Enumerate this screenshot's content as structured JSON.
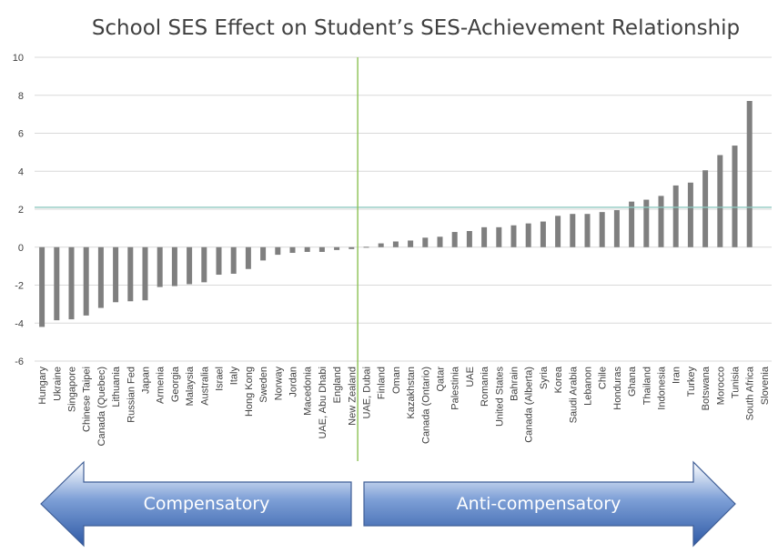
{
  "chart_data": {
    "type": "bar",
    "title": "School SES Effect on Student’s SES-Achievement Relationship",
    "xlabel": "",
    "ylabel": "",
    "ylim": [
      -6,
      10
    ],
    "yticks": [
      10,
      8,
      6,
      4,
      2,
      0,
      -2,
      -4,
      -6
    ],
    "grid": true,
    "bar_color": "#7f7f7f",
    "categories": [
      "Hungary",
      "Ukraine",
      "Singapore",
      "Chinese Taipei",
      "Canada (Quebec)",
      "Lithuania",
      "Russian Fed",
      "Japan",
      "Armenia",
      "Georgia",
      "Malaysia",
      "Australia",
      "Israel",
      "Italy",
      "Hong Kong",
      "Sweden",
      "Norway",
      "Jordan",
      "Macedonia",
      "UAE, Abu Dhabi",
      "England",
      "New Zealand",
      "UAE, Dubai",
      "Finland",
      "Oman",
      "Kazakhstan",
      "Canada (Ontario)",
      "Qatar",
      "Palestinia",
      "UAE",
      "Romania",
      "United States",
      "Bahrain",
      "Canada (Alberta)",
      "Syria",
      "Korea",
      "Saudi Arabia",
      "Lebanon",
      "Chile",
      "Honduras",
      "Ghana",
      "Thailand",
      "Indonesia",
      "Iran",
      "Turkey",
      "Botswana",
      "Morocco",
      "Tunisia",
      "South Africa",
      "Slovenia"
    ],
    "values": [
      -4.2,
      -3.85,
      -3.8,
      -3.6,
      -3.2,
      -2.9,
      -2.85,
      -2.8,
      -2.1,
      -2.05,
      -1.95,
      -1.85,
      -1.45,
      -1.4,
      -1.15,
      -0.7,
      -0.4,
      -0.3,
      -0.25,
      -0.25,
      -0.15,
      -0.1,
      0.02,
      0.2,
      0.3,
      0.35,
      0.5,
      0.55,
      0.8,
      0.85,
      1.05,
      1.05,
      1.15,
      1.25,
      1.35,
      1.65,
      1.75,
      1.75,
      1.85,
      1.95,
      2.4,
      2.5,
      2.7,
      3.25,
      3.4,
      4.05,
      4.85,
      5.35,
      7.7,
      null
    ],
    "reference_line": {
      "y": 2.1,
      "color": "#8fc9c0"
    },
    "divider": {
      "after_category": "New Zealand",
      "color": "#8cc152"
    }
  },
  "arrows": {
    "left_label": "Compensatory",
    "right_label": "Anti-compensatory",
    "fill_color": "#4a72b8"
  }
}
